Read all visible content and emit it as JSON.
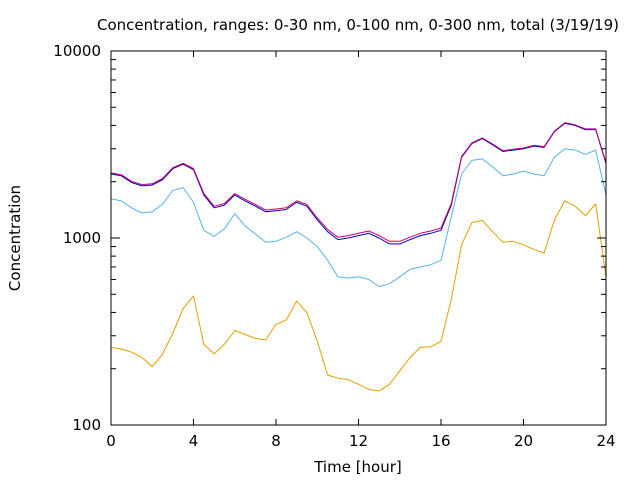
{
  "chart_data": {
    "type": "line",
    "title": "Concentration, ranges: 0-30 nm, 0-100 nm, 0-300 nm, total (3/19/19)",
    "xlabel": "Time [hour]",
    "ylabel": "Concentration",
    "xlim": [
      0,
      24
    ],
    "ylim": [
      100,
      10000
    ],
    "yscale": "log",
    "x_ticks": [
      0,
      4,
      8,
      12,
      16,
      20,
      24
    ],
    "x_tick_labels": [
      "0",
      "4",
      "8",
      "12",
      "16",
      "20",
      "24"
    ],
    "y_ticks": [
      100,
      1000,
      10000
    ],
    "y_tick_labels": [
      "100",
      "1000",
      "10000"
    ],
    "grid": false,
    "legend": "none",
    "x": [
      0,
      0.5,
      1,
      1.5,
      2,
      2.5,
      3,
      3.5,
      4,
      4.5,
      5,
      5.5,
      6,
      6.5,
      7,
      7.5,
      8,
      8.5,
      9,
      9.5,
      10,
      10.5,
      11,
      11.5,
      12,
      12.5,
      13,
      13.5,
      14,
      14.5,
      15,
      15.5,
      16,
      16.5,
      17,
      17.5,
      18,
      18.5,
      19,
      19.5,
      20,
      20.5,
      21,
      21.5,
      22,
      22.5,
      23,
      23.5,
      24
    ],
    "series": [
      {
        "color": "#e69f00",
        "values": [
          260,
          255,
          245,
          230,
          205,
          240,
          310,
          420,
          490,
          270,
          240,
          270,
          320,
          305,
          290,
          285,
          345,
          365,
          460,
          400,
          280,
          185,
          178,
          175,
          165,
          155,
          152,
          165,
          195,
          230,
          260,
          262,
          280,
          470,
          920,
          1210,
          1240,
          1080,
          950,
          960,
          920,
          870,
          830,
          1250,
          1580,
          1480,
          1320,
          1520,
          620
        ]
      },
      {
        "color": "#56b4e9",
        "values": [
          1620,
          1580,
          1450,
          1360,
          1380,
          1520,
          1800,
          1860,
          1550,
          1100,
          1020,
          1120,
          1350,
          1160,
          1050,
          950,
          960,
          1010,
          1080,
          1000,
          900,
          760,
          620,
          610,
          620,
          600,
          550,
          570,
          620,
          680,
          700,
          720,
          760,
          1300,
          2200,
          2600,
          2650,
          2400,
          2150,
          2200,
          2280,
          2200,
          2150,
          2700,
          3000,
          2950,
          2800,
          2950,
          1700
        ]
      },
      {
        "color": "#0000cc",
        "values": [
          2200,
          2150,
          1980,
          1900,
          1920,
          2050,
          2350,
          2480,
          2320,
          1700,
          1450,
          1500,
          1700,
          1580,
          1480,
          1380,
          1400,
          1420,
          1550,
          1480,
          1250,
          1080,
          980,
          1000,
          1030,
          1060,
          1000,
          930,
          930,
          980,
          1030,
          1060,
          1100,
          1500,
          2700,
          3200,
          3400,
          3150,
          2900,
          2950,
          3000,
          3100,
          3050,
          3700,
          4100,
          4000,
          3800,
          3800,
          2500
        ]
      },
      {
        "color": "#cc0066",
        "values": [
          2230,
          2180,
          2010,
          1930,
          1950,
          2080,
          2380,
          2510,
          2350,
          1730,
          1480,
          1530,
          1730,
          1610,
          1510,
          1410,
          1430,
          1450,
          1580,
          1510,
          1280,
          1110,
          1010,
          1030,
          1060,
          1090,
          1030,
          960,
          960,
          1010,
          1060,
          1090,
          1130,
          1530,
          2730,
          3230,
          3430,
          3180,
          2930,
          2980,
          3030,
          3130,
          3080,
          3730,
          4130,
          4030,
          3830,
          3830,
          2530
        ]
      }
    ]
  }
}
